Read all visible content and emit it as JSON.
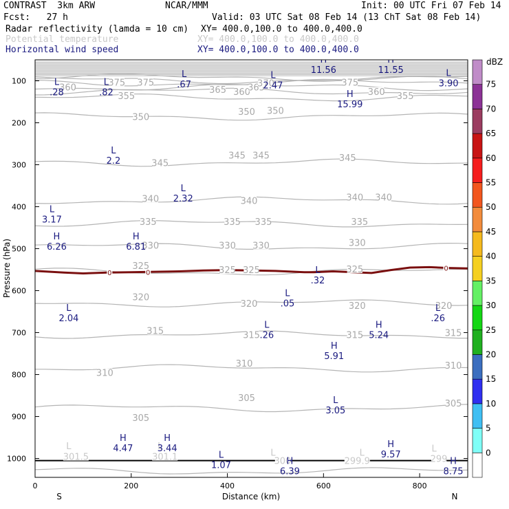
{
  "header": {
    "model": "CONTRAST  3km ARW",
    "center": "NCAR/MMM",
    "init": "Init: 00 UTC Fri 07 Feb 14",
    "fcst": "Fcst:   27 h",
    "valid": "Valid: 03 UTC Sat 08 Feb 14 (13 ChT Sat 08 Feb 14)",
    "fields": [
      {
        "name": "Radar reflectivity (lamda = 10 cm)",
        "xy": "XY= 400.0,100.0 to 400.0,400.0",
        "style": "black"
      },
      {
        "name": "Potential temperature",
        "xy": "XY= 400.0,100.0 to 400.0,400.0",
        "style": "faint"
      },
      {
        "name": "Horizontal wind speed",
        "xy": "XY= 400.0,100.0 to 400.0,400.0",
        "style": "navy"
      }
    ]
  },
  "chart_data": {
    "type": "cross-section",
    "xlabel": "Distance (km)",
    "ylabel": "Pressure (hPa)",
    "xlim": [
      0,
      900
    ],
    "ylim": [
      1045,
      50
    ],
    "x_ticks": [
      0,
      200,
      400,
      600,
      800
    ],
    "y_ticks": [
      100,
      200,
      300,
      400,
      500,
      600,
      700,
      800,
      900,
      1000
    ],
    "x_end_labels": {
      "left": "S",
      "right": "N"
    },
    "colorbar": {
      "unit": "dBZ",
      "levels": [
        0,
        5,
        10,
        15,
        20,
        25,
        30,
        35,
        40,
        45,
        50,
        55,
        60,
        65,
        70,
        75
      ],
      "colors": [
        "#ffffff",
        "#7ffff7",
        "#3fbff3",
        "#2f2ff0",
        "#3b6ebf",
        "#20b020",
        "#14d714",
        "#64f064",
        "#f5d021",
        "#f5ba1e",
        "#f28c3c",
        "#f2561e",
        "#f51e1e",
        "#c81414",
        "#9b3c60",
        "#8c3296",
        "#c08cc8"
      ]
    },
    "theta_labels": [
      {
        "x": 68,
        "p": 120,
        "text": "360"
      },
      {
        "x": 170,
        "p": 108,
        "text": "375"
      },
      {
        "x": 230,
        "p": 108,
        "text": "375"
      },
      {
        "x": 190,
        "p": 140,
        "text": "355"
      },
      {
        "x": 380,
        "p": 125,
        "text": "365"
      },
      {
        "x": 430,
        "p": 130,
        "text": "360"
      },
      {
        "x": 460,
        "p": 120,
        "text": "365"
      },
      {
        "x": 480,
        "p": 110,
        "text": "370"
      },
      {
        "x": 655,
        "p": 108,
        "text": "375"
      },
      {
        "x": 710,
        "p": 130,
        "text": "360"
      },
      {
        "x": 770,
        "p": 140,
        "text": "355"
      },
      {
        "x": 220,
        "p": 190,
        "text": "350"
      },
      {
        "x": 440,
        "p": 178,
        "text": "350"
      },
      {
        "x": 500,
        "p": 175,
        "text": "350"
      },
      {
        "x": 260,
        "p": 300,
        "text": "345"
      },
      {
        "x": 420,
        "p": 282,
        "text": "345"
      },
      {
        "x": 470,
        "p": 282,
        "text": "345"
      },
      {
        "x": 650,
        "p": 288,
        "text": "345"
      },
      {
        "x": 240,
        "p": 385,
        "text": "340"
      },
      {
        "x": 445,
        "p": 390,
        "text": "340"
      },
      {
        "x": 665,
        "p": 382,
        "text": "340"
      },
      {
        "x": 725,
        "p": 382,
        "text": "340"
      },
      {
        "x": 235,
        "p": 440,
        "text": "335"
      },
      {
        "x": 410,
        "p": 440,
        "text": "335"
      },
      {
        "x": 475,
        "p": 440,
        "text": "335"
      },
      {
        "x": 675,
        "p": 440,
        "text": "335"
      },
      {
        "x": 240,
        "p": 497,
        "text": "330"
      },
      {
        "x": 400,
        "p": 497,
        "text": "330"
      },
      {
        "x": 470,
        "p": 497,
        "text": "330"
      },
      {
        "x": 670,
        "p": 490,
        "text": "330"
      },
      {
        "x": 220,
        "p": 545,
        "text": "325"
      },
      {
        "x": 400,
        "p": 555,
        "text": "325"
      },
      {
        "x": 450,
        "p": 555,
        "text": "325"
      },
      {
        "x": 665,
        "p": 553,
        "text": "325"
      },
      {
        "x": 220,
        "p": 620,
        "text": "320"
      },
      {
        "x": 445,
        "p": 635,
        "text": "320"
      },
      {
        "x": 670,
        "p": 640,
        "text": "320"
      },
      {
        "x": 850,
        "p": 640,
        "text": "320"
      },
      {
        "x": 250,
        "p": 700,
        "text": "315"
      },
      {
        "x": 450,
        "p": 710,
        "text": "315"
      },
      {
        "x": 665,
        "p": 710,
        "text": "315"
      },
      {
        "x": 870,
        "p": 705,
        "text": "315"
      },
      {
        "x": 145,
        "p": 800,
        "text": "310"
      },
      {
        "x": 435,
        "p": 778,
        "text": "310"
      },
      {
        "x": 870,
        "p": 783,
        "text": "310"
      },
      {
        "x": 220,
        "p": 907,
        "text": "305"
      },
      {
        "x": 440,
        "p": 860,
        "text": "305"
      },
      {
        "x": 870,
        "p": 873,
        "text": "305"
      }
    ],
    "theta_faint_labels": [
      {
        "x": 85,
        "p": 1000,
        "text": "301.5"
      },
      {
        "x": 270,
        "p": 1000,
        "text": "301.1"
      },
      {
        "x": 515,
        "p": 1010,
        "text": "300"
      },
      {
        "x": 670,
        "p": 1010,
        "text": "299.9"
      },
      {
        "x": 840,
        "p": 1005,
        "text": "299"
      }
    ],
    "theta_faint_marks": [
      {
        "x": 70,
        "p": 970,
        "text": "L"
      },
      {
        "x": 260,
        "p": 970,
        "text": "L"
      },
      {
        "x": 495,
        "p": 985,
        "text": "L"
      },
      {
        "x": 680,
        "p": 985,
        "text": "L"
      },
      {
        "x": 830,
        "p": 975,
        "text": "L"
      }
    ],
    "wind_extrema": [
      {
        "x": 45,
        "p": 102,
        "mark": "L",
        "value": ".28"
      },
      {
        "x": 148,
        "p": 102,
        "mark": "L",
        "value": ".82"
      },
      {
        "x": 310,
        "p": 83,
        "mark": "L",
        "value": ".67"
      },
      {
        "x": 495,
        "p": 85,
        "mark": "L",
        "value": "2.47"
      },
      {
        "x": 600,
        "p": 48,
        "mark": "H",
        "value": "11.56"
      },
      {
        "x": 740,
        "p": 48,
        "mark": "H",
        "value": "11.55"
      },
      {
        "x": 860,
        "p": 80,
        "mark": "L",
        "value": "3.90"
      },
      {
        "x": 655,
        "p": 130,
        "mark": "H",
        "value": "15.99"
      },
      {
        "x": 163,
        "p": 265,
        "mark": "L",
        "value": "2.2"
      },
      {
        "x": 308,
        "p": 355,
        "mark": "L",
        "value": "2.32"
      },
      {
        "x": 35,
        "p": 405,
        "mark": "L",
        "value": "3.17"
      },
      {
        "x": 45,
        "p": 470,
        "mark": "H",
        "value": "6.26"
      },
      {
        "x": 210,
        "p": 470,
        "mark": "H",
        "value": "6.81"
      },
      {
        "x": 588,
        "p": 550,
        "mark": "L",
        "value": ".32"
      },
      {
        "x": 525,
        "p": 605,
        "mark": "L",
        "value": ".05"
      },
      {
        "x": 70,
        "p": 640,
        "mark": "L",
        "value": "2.04"
      },
      {
        "x": 838,
        "p": 640,
        "mark": "L",
        "value": ".26"
      },
      {
        "x": 482,
        "p": 680,
        "mark": "L",
        "value": ".26"
      },
      {
        "x": 715,
        "p": 680,
        "mark": "H",
        "value": "5.24"
      },
      {
        "x": 622,
        "p": 730,
        "mark": "H",
        "value": "5.91"
      },
      {
        "x": 625,
        "p": 860,
        "mark": "L",
        "value": "3.05"
      },
      {
        "x": 183,
        "p": 950,
        "mark": "H",
        "value": "4.47"
      },
      {
        "x": 275,
        "p": 950,
        "mark": "H",
        "value": "3.44"
      },
      {
        "x": 387,
        "p": 990,
        "mark": "L",
        "value": "1.07"
      },
      {
        "x": 740,
        "p": 965,
        "mark": "H",
        "value": "9.57"
      },
      {
        "x": 530,
        "p": 1005,
        "mark": "H",
        "value": "6.39"
      },
      {
        "x": 870,
        "p": 1005,
        "mark": "H",
        "value": "8.75"
      }
    ],
    "freezing_level": {
      "label": "0",
      "label_x": [
        155,
        235,
        455,
        855
      ],
      "points": [
        [
          0,
          553
        ],
        [
          60,
          557
        ],
        [
          100,
          559
        ],
        [
          150,
          557
        ],
        [
          200,
          556
        ],
        [
          250,
          555
        ],
        [
          300,
          554
        ],
        [
          350,
          552
        ],
        [
          400,
          551
        ],
        [
          450,
          552
        ],
        [
          500,
          553
        ],
        [
          540,
          555
        ],
        [
          560,
          556
        ],
        [
          580,
          556
        ],
        [
          620,
          554
        ],
        [
          660,
          556
        ],
        [
          700,
          558
        ],
        [
          740,
          551
        ],
        [
          780,
          545
        ],
        [
          820,
          544
        ],
        [
          860,
          546
        ],
        [
          900,
          547
        ]
      ]
    },
    "ground_level": {
      "points": [
        [
          0,
          1005
        ],
        [
          900,
          1005
        ]
      ]
    }
  }
}
